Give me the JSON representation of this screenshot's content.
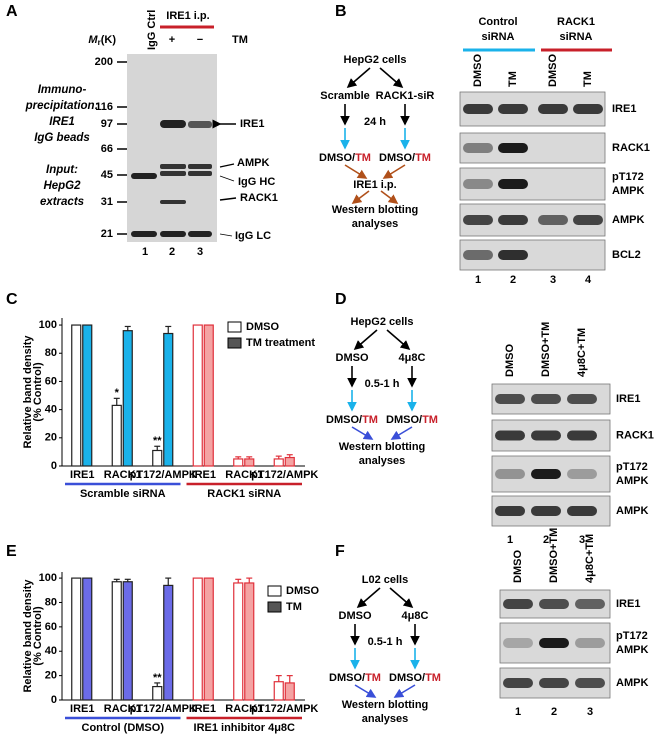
{
  "A": {
    "label": "A",
    "igg_ctrl": "IgG Ctrl",
    "ip_header": "IRE1 i.p.",
    "plus": "+",
    "minus": "−",
    "tm": "TM",
    "mr": {
      "m": "M",
      "sub": "r",
      "unit": "(K)"
    },
    "markers": [
      200,
      116,
      97,
      66,
      45,
      31,
      21
    ],
    "left_top": [
      "Immuno-",
      "precipitation:",
      "IRE1",
      "IgG beads"
    ],
    "left_bottom": [
      "Input:",
      "HepG2",
      "extracts"
    ],
    "bands": [
      "IRE1",
      "AMPK",
      "IgG HC",
      "RACK1",
      "IgG LC"
    ],
    "lanes": [
      "1",
      "2",
      "3"
    ]
  },
  "B": {
    "label": "B",
    "diagram": {
      "cells": "HepG2 cells",
      "left": "Scramble",
      "right": "RACK1-siR",
      "time": "24 h",
      "treat": {
        "a": "DMSO",
        "sep": "/",
        "b": "TM"
      },
      "ip": "IRE1 i.p.",
      "readout": [
        "Western blotting",
        "analyses"
      ]
    },
    "blot": {
      "groups": [
        [
          "Control",
          "siRNA"
        ],
        [
          "RACK1",
          "siRNA"
        ]
      ],
      "lanes": [
        "DMSO",
        "TM",
        "DMSO",
        "TM"
      ],
      "rows": [
        "IRE1",
        "RACK1",
        [
          "pT172",
          "AMPK"
        ],
        "AMPK",
        "BCL2"
      ],
      "numbers": [
        "1",
        "2",
        "3",
        "4"
      ]
    }
  },
  "C": {
    "label": "C",
    "chart": {
      "type": "bar",
      "ylabel": [
        "Relative band density",
        "(% Control)"
      ],
      "ylim": [
        0,
        105
      ],
      "yticks": [
        0,
        20,
        40,
        60,
        80,
        100
      ],
      "legend": [
        {
          "name": "DMSO",
          "color": "#ffffff",
          "text_color": "#000000"
        },
        {
          "name": "TM treatment",
          "color": "#555555",
          "text_color": "#000000"
        }
      ],
      "groups": [
        {
          "name": "Scramble siRNA",
          "line_color": "#3a4fd8",
          "edge": "#222222",
          "categories": [
            "IRE1",
            "RACK1",
            "pT172/AMPK"
          ],
          "category_colors": [
            "#000000",
            "#c8202a",
            "#3a4fd8"
          ],
          "series": [
            {
              "color": "#ffffff",
              "values": [
                100,
                43,
                11
              ],
              "errors": [
                0,
                5,
                3
              ],
              "labels": [
                null,
                "*",
                "**"
              ]
            },
            {
              "color": "#1ab2ea",
              "values": [
                100,
                96,
                94
              ],
              "errors": [
                0,
                3,
                5
              ]
            }
          ]
        },
        {
          "name": "RACK1 siRNA",
          "line_color": "#c8202a",
          "edge": "#e0303a",
          "categories": [
            "IRE1",
            "RACK1",
            "pT172/AMPK"
          ],
          "category_colors": [
            "#000000",
            "#c8202a",
            "#3a4fd8"
          ],
          "series": [
            {
              "color": "#ffffff",
              "values": [
                100,
                5,
                5
              ],
              "errors": [
                0,
                1.5,
                2
              ]
            },
            {
              "color": "#f4a3a3",
              "values": [
                100,
                5,
                6
              ],
              "errors": [
                0,
                1.5,
                2
              ]
            }
          ]
        }
      ]
    }
  },
  "D": {
    "label": "D",
    "diagram": {
      "cells": "HepG2 cells",
      "left": "DMSO",
      "right": "4μ8C",
      "time": "0.5-1 h",
      "treat": {
        "a": "DMSO",
        "sep": "/",
        "b": "TM"
      },
      "readout": [
        "Western blotting",
        "analyses"
      ]
    },
    "blot": {
      "lanes": [
        "DMSO",
        "DMSO+TM",
        "4μ8C+TM"
      ],
      "rows": [
        "IRE1",
        "RACK1",
        [
          "pT172",
          "AMPK"
        ],
        "AMPK"
      ],
      "numbers": [
        "1",
        "2",
        "3"
      ]
    }
  },
  "E": {
    "label": "E",
    "chart": {
      "type": "bar",
      "ylabel": [
        "Relative band density",
        "(% Control)"
      ],
      "ylim": [
        0,
        105
      ],
      "yticks": [
        0,
        20,
        40,
        60,
        80,
        100
      ],
      "legend": [
        {
          "name": "DMSO",
          "color": "#ffffff",
          "text_color": "#000000"
        },
        {
          "name": "TM",
          "color": "#555555",
          "text_color": "#3a4fd8"
        }
      ],
      "groups": [
        {
          "name": "Control (DMSO)",
          "line_color": "#3a4fd8",
          "edge": "#222222",
          "categories": [
            "IRE1",
            "RACK1",
            "pT172/AMPK"
          ],
          "category_colors": [
            "#000000",
            "#000000",
            "#3a4fd8"
          ],
          "series": [
            {
              "color": "#ffffff",
              "values": [
                100,
                97,
                11
              ],
              "errors": [
                0,
                2,
                3
              ],
              "labels": [
                null,
                null,
                "**"
              ]
            },
            {
              "color": "#6b6be8",
              "values": [
                100,
                97,
                94
              ],
              "errors": [
                0,
                2,
                6
              ]
            }
          ]
        },
        {
          "name": "IRE1 inhibitor 4μ8C",
          "line_color": "#c8202a",
          "edge": "#e0303a",
          "categories": [
            "IRE1",
            "RACK1",
            "pT172/AMPK"
          ],
          "category_colors": [
            "#000000",
            "#000000",
            "#000000"
          ],
          "series": [
            {
              "color": "#ffffff",
              "values": [
                100,
                96,
                15
              ],
              "errors": [
                0,
                3,
                5
              ]
            },
            {
              "color": "#f4a3a3",
              "values": [
                100,
                96,
                14
              ],
              "errors": [
                0,
                4,
                6
              ]
            }
          ]
        }
      ]
    }
  },
  "F": {
    "label": "F",
    "diagram": {
      "cells": "L02 cells",
      "left": "DMSO",
      "right": "4μ8C",
      "time": "0.5-1 h",
      "treat": {
        "a": "DMSO",
        "sep": "/",
        "b": "TM"
      },
      "readout": [
        "Western blotting",
        "analyses"
      ]
    },
    "blot": {
      "lanes": [
        "DMSO",
        "DMSO+TM",
        "4μ8C+TM"
      ],
      "rows": [
        "IRE1",
        [
          "pT172",
          "AMPK"
        ],
        "AMPK"
      ],
      "numbers": [
        "1",
        "2",
        "3"
      ]
    }
  }
}
